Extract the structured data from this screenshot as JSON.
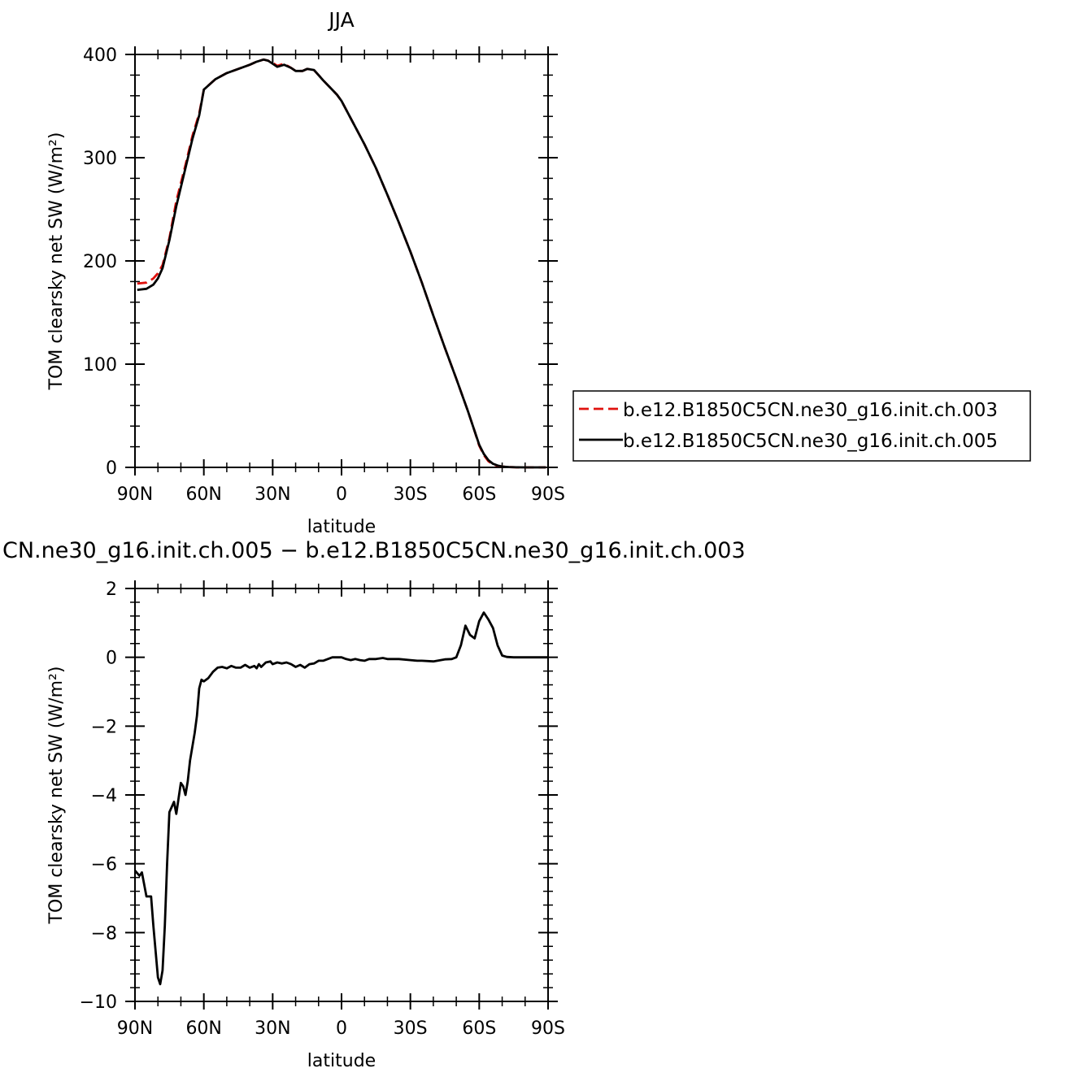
{
  "chart_data": [
    {
      "type": "line",
      "title": "JJA",
      "xlabel": "latitude",
      "ylabel": "TOM clearsky net SW (W/m²)",
      "xlim": [
        90,
        -90
      ],
      "ylim": [
        0,
        400
      ],
      "x_ticks": [
        90,
        60,
        30,
        0,
        -30,
        -60,
        -90
      ],
      "x_tick_labels": [
        "90N",
        "60N",
        "30N",
        "0",
        "30S",
        "60S",
        "90S"
      ],
      "y_ticks": [
        0,
        100,
        200,
        300,
        400
      ],
      "y_tick_labels": [
        "0",
        "100",
        "200",
        "300",
        "400"
      ],
      "legend": {
        "placement": "right"
      },
      "series": [
        {
          "name": "b.e12.B1850C5CN.ne30_g16.init.ch.003",
          "color": "#e0120e",
          "dash": "dashed",
          "x": [
            89,
            85,
            82,
            80,
            78,
            75,
            72,
            68,
            65,
            62,
            60,
            55,
            50,
            45,
            40,
            37,
            34,
            32,
            30,
            28,
            25,
            22,
            20,
            17,
            15,
            12,
            10,
            8,
            5,
            2,
            0,
            -5,
            -10,
            -15,
            -20,
            -25,
            -30,
            -35,
            -40,
            -45,
            -50,
            -55,
            -58,
            -60,
            -62,
            -64,
            -66,
            -68,
            -70,
            -73,
            -76,
            -80,
            -85,
            -89
          ],
          "y": [
            178,
            179,
            183,
            188,
            196,
            222,
            258,
            293,
            321,
            343,
            366,
            376,
            382,
            386,
            390,
            393,
            395,
            394,
            392,
            389,
            391,
            387,
            384,
            384,
            386,
            385,
            380,
            375,
            368,
            361,
            355,
            334,
            313,
            290,
            264,
            237,
            209,
            179,
            147,
            116,
            86,
            55,
            35,
            21,
            12,
            6,
            3,
            1.5,
            0.8,
            0.3,
            0.1,
            0,
            0,
            0
          ]
        },
        {
          "name": "b.e12.B1850C5CN.ne30_g16.init.ch.005",
          "color": "#000000",
          "dash": "solid",
          "x": [
            89,
            85,
            82,
            80,
            78,
            75,
            72,
            68,
            65,
            62,
            60,
            55,
            50,
            45,
            40,
            37,
            34,
            32,
            30,
            28,
            25,
            22,
            20,
            17,
            15,
            12,
            10,
            8,
            5,
            2,
            0,
            -5,
            -10,
            -15,
            -20,
            -25,
            -30,
            -35,
            -40,
            -45,
            -50,
            -55,
            -58,
            -60,
            -62,
            -64,
            -66,
            -68,
            -70,
            -73,
            -76,
            -80,
            -85,
            -89
          ],
          "y": [
            172,
            173,
            177,
            183,
            193,
            220,
            253,
            290,
            318,
            341,
            366,
            376,
            382,
            386,
            390,
            393,
            395,
            394,
            391,
            388,
            390,
            387,
            384,
            384,
            386,
            385,
            380,
            375,
            368,
            361,
            355,
            334,
            313,
            290,
            264,
            237,
            209,
            179,
            147,
            116,
            86,
            55,
            35,
            22,
            13,
            7,
            3.5,
            1.8,
            0.8,
            0.3,
            0.1,
            0,
            0,
            0
          ]
        }
      ]
    },
    {
      "type": "line",
      "title": "CN.ne30_g16.init.ch.005 − b.e12.B1850C5CN.ne30_g16.init.ch.003",
      "xlabel": "latitude",
      "ylabel": "TOM clearsky net SW (W/m²)",
      "xlim": [
        90,
        -90
      ],
      "ylim": [
        -10,
        2
      ],
      "x_ticks": [
        90,
        60,
        30,
        0,
        -30,
        -60,
        -90
      ],
      "x_tick_labels": [
        "90N",
        "60N",
        "30N",
        "0",
        "30S",
        "60S",
        "90S"
      ],
      "y_ticks": [
        -10,
        -8,
        -6,
        -4,
        -2,
        0,
        2
      ],
      "y_tick_labels": [
        "−10",
        "−8",
        "−6",
        "−4",
        "−2",
        "0",
        "2"
      ],
      "series": [
        {
          "color": "#000000",
          "dash": "solid",
          "x": [
            90,
            88,
            87,
            85,
            83,
            82,
            80,
            79,
            78,
            77,
            76,
            75,
            73,
            72,
            71,
            70,
            69,
            68,
            67,
            66,
            64,
            63,
            62,
            61,
            60,
            58,
            56,
            54,
            52,
            50,
            48,
            46,
            44,
            42,
            40,
            38,
            37,
            36,
            35,
            33,
            31,
            30,
            28,
            26,
            24,
            22,
            20,
            18,
            16,
            14,
            12,
            10,
            8,
            6,
            4,
            2,
            0,
            -2,
            -4,
            -6,
            -8,
            -10,
            -12,
            -15,
            -18,
            -20,
            -25,
            -30,
            -33,
            -35,
            -40,
            -45,
            -48,
            -50,
            -52,
            -54,
            -56,
            -58,
            -60,
            -62,
            -64,
            -66,
            -68,
            -70,
            -72,
            -75,
            -80,
            -85,
            -90
          ],
          "y": [
            -6.2,
            -6.35,
            -6.25,
            -6.95,
            -6.95,
            -7.8,
            -9.3,
            -9.5,
            -9.1,
            -7.8,
            -6.0,
            -4.5,
            -4.2,
            -4.55,
            -4.1,
            -3.65,
            -3.75,
            -4.0,
            -3.6,
            -3.0,
            -2.2,
            -1.7,
            -0.9,
            -0.65,
            -0.7,
            -0.6,
            -0.42,
            -0.3,
            -0.28,
            -0.32,
            -0.25,
            -0.3,
            -0.3,
            -0.22,
            -0.3,
            -0.25,
            -0.32,
            -0.2,
            -0.28,
            -0.15,
            -0.12,
            -0.2,
            -0.15,
            -0.18,
            -0.15,
            -0.2,
            -0.28,
            -0.22,
            -0.3,
            -0.2,
            -0.18,
            -0.1,
            -0.1,
            -0.05,
            0.0,
            0.0,
            0.0,
            -0.05,
            -0.08,
            -0.05,
            -0.08,
            -0.1,
            -0.05,
            -0.05,
            -0.02,
            -0.05,
            -0.05,
            -0.08,
            -0.1,
            -0.1,
            -0.12,
            -0.06,
            -0.05,
            0.0,
            0.35,
            0.92,
            0.65,
            0.55,
            1.05,
            1.3,
            1.1,
            0.85,
            0.35,
            0.05,
            0.01,
            0.0,
            0.0,
            0.0,
            0.0
          ]
        }
      ]
    }
  ]
}
